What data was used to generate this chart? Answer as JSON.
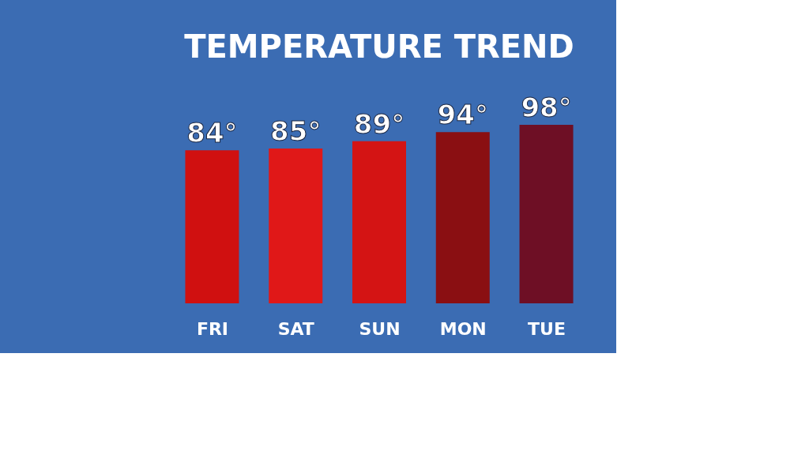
{
  "chart_data": {
    "type": "bar",
    "title": "TEMPERATURE TREND",
    "categories": [
      "FRI",
      "SAT",
      "SUN",
      "MON",
      "TUE"
    ],
    "values": [
      84,
      85,
      89,
      94,
      98
    ],
    "colors": [
      "#d01010",
      "#e01818",
      "#d41414",
      "#8a0f12",
      "#6e0f25"
    ],
    "value_labels": [
      "84°",
      "85°",
      "89°",
      "94°",
      "98°"
    ],
    "tick_labels": "x"
  }
}
